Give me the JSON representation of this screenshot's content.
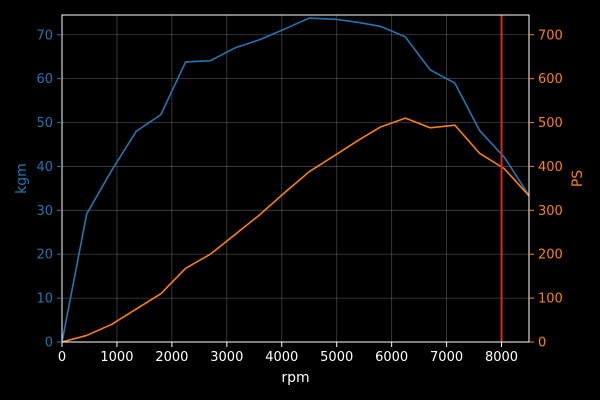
{
  "chart_data": {
    "type": "line",
    "title": "",
    "xlabel": "rpm",
    "ylabel_left": "kgm",
    "ylabel_right": "PS",
    "xlim": [
      0,
      8500
    ],
    "ylim_left": [
      0,
      74.5
    ],
    "ylim_right": [
      0,
      745
    ],
    "x_ticks": [
      0,
      1000,
      2000,
      3000,
      4000,
      5000,
      6000,
      7000,
      8000
    ],
    "y_left_ticks": [
      0,
      10,
      20,
      30,
      40,
      50,
      60,
      70
    ],
    "y_right_ticks": [
      0,
      100,
      200,
      300,
      400,
      500,
      600,
      700
    ],
    "grid": true,
    "vline": {
      "x": 8000,
      "color": "#d62728"
    },
    "series": [
      {
        "name": "",
        "axis": "left",
        "color": "#1f77b4",
        "x": [
          0,
          450,
          900,
          1350,
          1800,
          2250,
          2700,
          3150,
          3600,
          4050,
          4500,
          5000,
          5400,
          5800,
          6250,
          6700,
          7150,
          7600,
          8050,
          8500
        ],
        "y": [
          0,
          29.2,
          39,
          48,
          51.8,
          63.8,
          64.1,
          67,
          68.9,
          71.3,
          73.8,
          73.5,
          72.8,
          71.9,
          69.5,
          62,
          59,
          48.2,
          42.1,
          33.4
        ]
      },
      {
        "name": "",
        "axis": "right",
        "color": "#ff7f0e",
        "x": [
          0,
          450,
          900,
          1350,
          1800,
          2250,
          2700,
          3150,
          3600,
          4050,
          4500,
          5000,
          5400,
          5800,
          6250,
          6700,
          7150,
          7600,
          8050,
          8500
        ],
        "y": [
          0,
          15,
          40,
          75,
          110,
          168,
          200,
          245,
          290,
          340,
          388,
          428,
          460,
          490,
          510,
          488,
          494,
          430,
          395,
          333
        ]
      }
    ]
  }
}
